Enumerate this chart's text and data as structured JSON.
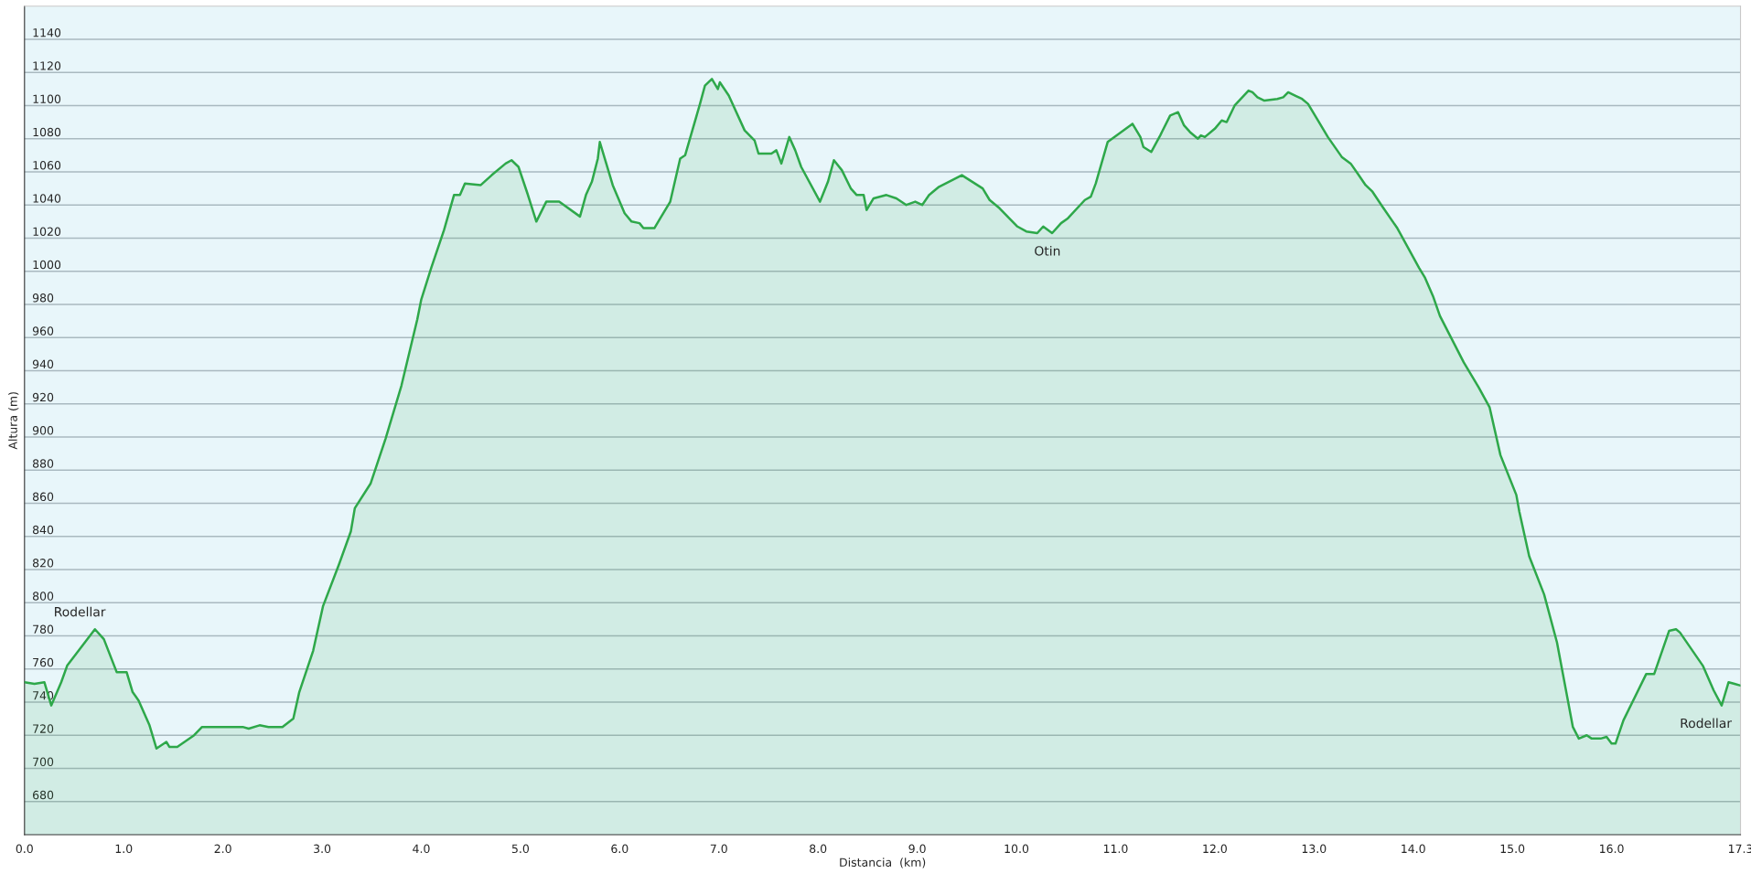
{
  "chart_data": {
    "type": "area",
    "xlabel": "Distancia  (km)",
    "ylabel": "Altura (m)",
    "xlim": [
      0,
      17.3
    ],
    "ylim": [
      660,
      1160
    ],
    "xticks": [
      {
        "value": 0,
        "label": "0.0"
      },
      {
        "value": 1,
        "label": "1.0"
      },
      {
        "value": 2,
        "label": "2.0"
      },
      {
        "value": 3,
        "label": "3.0"
      },
      {
        "value": 4,
        "label": "4.0"
      },
      {
        "value": 5,
        "label": "5.0"
      },
      {
        "value": 6,
        "label": "6.0"
      },
      {
        "value": 7,
        "label": "7.0"
      },
      {
        "value": 8,
        "label": "8.0"
      },
      {
        "value": 9,
        "label": "9.0"
      },
      {
        "value": 10,
        "label": "10.0"
      },
      {
        "value": 11,
        "label": "11.0"
      },
      {
        "value": 12,
        "label": "12.0"
      },
      {
        "value": 13,
        "label": "13.0"
      },
      {
        "value": 14,
        "label": "14.0"
      },
      {
        "value": 15,
        "label": "15.0"
      },
      {
        "value": 16,
        "label": "16.0"
      },
      {
        "value": 17.3,
        "label": "17.3"
      }
    ],
    "yticks": [
      680,
      700,
      720,
      740,
      760,
      780,
      800,
      820,
      840,
      860,
      880,
      900,
      920,
      940,
      960,
      980,
      1000,
      1020,
      1040,
      1060,
      1080,
      1100,
      1120,
      1140
    ],
    "grid": "y",
    "legend": false,
    "marker": "none",
    "line_style": "solid",
    "annotations": [
      {
        "text": "Rodellar",
        "x": 0.71,
        "y": 784
      },
      {
        "text": "Otin",
        "x": 10.21,
        "y": 1023
      },
      {
        "text": "Rodellar",
        "x": 17.11,
        "y": 738
      }
    ],
    "series": [
      {
        "color": "#2ea84a",
        "x": [
          0,
          0.1,
          0.2,
          0.27,
          0.37,
          0.43,
          0.71,
          0.8,
          0.93,
          1.03,
          1.09,
          1.15,
          1.26,
          1.33,
          1.43,
          1.46,
          1.54,
          1.71,
          1.79,
          2.2,
          2.26,
          2.37,
          2.46,
          2.6,
          2.71,
          2.77,
          2.91,
          3.01,
          3.17,
          3.29,
          3.33,
          3.49,
          3.64,
          3.8,
          3.96,
          4.0,
          4.1,
          4.23,
          4.33,
          4.39,
          4.44,
          4.6,
          4.71,
          4.85,
          4.91,
          4.98,
          5.07,
          5.16,
          5.26,
          5.39,
          5.6,
          5.66,
          5.72,
          5.78,
          5.8,
          5.93,
          6.05,
          6.12,
          6.2,
          6.24,
          6.35,
          6.41,
          6.51,
          6.61,
          6.66,
          6.81,
          6.86,
          6.93,
          6.99,
          7.01,
          7.1,
          7.26,
          7.36,
          7.4,
          7.53,
          7.58,
          7.63,
          7.71,
          7.77,
          7.83,
          8.02,
          8.1,
          8.16,
          8.24,
          8.33,
          8.39,
          8.46,
          8.49,
          8.56,
          8.69,
          8.79,
          8.89,
          8.98,
          9.05,
          9.12,
          9.22,
          9.45,
          9.66,
          9.73,
          9.83,
          10.01,
          10.1,
          10.21,
          10.27,
          10.36,
          10.45,
          10.52,
          10.69,
          10.75,
          10.8,
          10.92,
          11.17,
          11.25,
          11.28,
          11.36,
          11.45,
          11.55,
          11.63,
          11.69,
          11.75,
          11.83,
          11.86,
          11.9,
          12.0,
          12.07,
          12.12,
          12.2,
          12.34,
          12.38,
          12.43,
          12.5,
          12.63,
          12.69,
          12.74,
          12.81,
          12.88,
          12.94,
          13.03,
          13.14,
          13.28,
          13.37,
          13.44,
          13.52,
          13.59,
          13.69,
          13.84,
          14.06,
          14.12,
          14.2,
          14.27,
          14.51,
          14.66,
          14.77,
          14.88,
          15.04,
          15.07,
          15.17,
          15.32,
          15.45,
          15.61,
          15.67,
          15.75,
          15.8,
          15.89,
          15.95,
          16.0,
          16.04,
          16.12,
          16.35,
          16.43,
          16.58,
          16.65,
          16.69,
          16.92,
          17.03,
          17.11,
          17.18,
          17.24,
          17.3
        ],
        "values": [
          752,
          751,
          752,
          738,
          752,
          762,
          784,
          778,
          758,
          758,
          746,
          741,
          726,
          712,
          716,
          713,
          713,
          720,
          725,
          725,
          724,
          726,
          725,
          725,
          730,
          746,
          771,
          798,
          823,
          843,
          857,
          872,
          899,
          931,
          971,
          983,
          1002,
          1025,
          1046,
          1046,
          1053,
          1052,
          1058,
          1065,
          1067,
          1063,
          1047,
          1030,
          1042,
          1042,
          1033,
          1046,
          1054,
          1068,
          1078,
          1052,
          1035,
          1030,
          1029,
          1026,
          1026,
          1032,
          1042,
          1068,
          1070,
          1101,
          1112,
          1116,
          1110,
          1114,
          1106,
          1085,
          1079,
          1071,
          1071,
          1073,
          1065,
          1081,
          1073,
          1063,
          1042,
          1054,
          1067,
          1061,
          1050,
          1046,
          1046,
          1037,
          1044,
          1046,
          1044,
          1040,
          1042,
          1040,
          1046,
          1051,
          1058,
          1050,
          1043,
          1038,
          1027,
          1024,
          1023,
          1027,
          1023,
          1029,
          1032,
          1043,
          1045,
          1053,
          1078,
          1089,
          1081,
          1075,
          1072,
          1082,
          1094,
          1096,
          1088,
          1084,
          1080,
          1082,
          1081,
          1086,
          1091,
          1090,
          1100,
          1109,
          1108,
          1105,
          1103,
          1104,
          1105,
          1108,
          1106,
          1104,
          1101,
          1092,
          1081,
          1069,
          1065,
          1059,
          1052,
          1048,
          1039,
          1026,
          1002,
          996,
          985,
          973,
          945,
          930,
          918,
          889,
          865,
          855,
          828,
          805,
          776,
          725,
          718,
          720,
          718,
          718,
          719,
          715,
          715,
          729,
          757,
          757,
          783,
          784,
          782,
          762,
          747,
          738,
          752,
          751,
          750
        ]
      }
    ]
  }
}
